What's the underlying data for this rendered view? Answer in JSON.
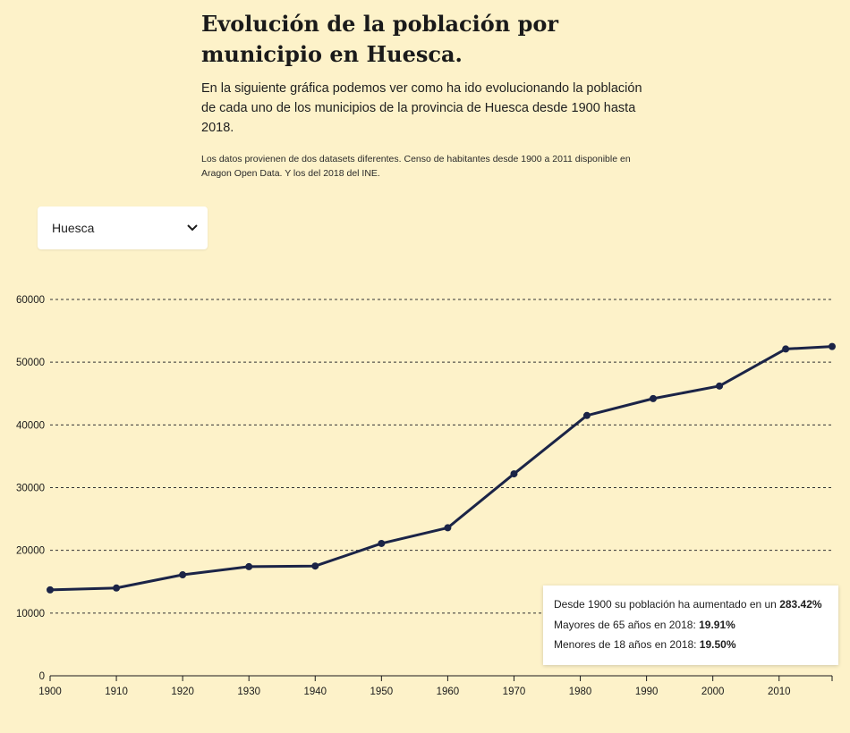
{
  "header": {
    "title": "Evolución de la población por municipio en Huesca.",
    "subtitle": "En la siguiente gráfica podemos ver como ha ido evolucionando la población de cada uno de los municipios de la provincia de Huesca desde 1900 hasta 2018.",
    "note": "Los datos provienen de dos datasets diferentes. Censo de habitantes desde 1900 a 2011 disponible en Aragon Open Data. Y los del 2018 del INE."
  },
  "selector": {
    "selected": "Huesca",
    "icon": "chevron-down-icon"
  },
  "colors": {
    "background": "#fdf2c9",
    "line": "#1b2447",
    "grid": "#333333"
  },
  "tooltip": {
    "line1_prefix": "Desde 1900 su población ha aumentado en un ",
    "line1_value": "283.42%",
    "line2_prefix": "Mayores de 65 años en 2018: ",
    "line2_value": "19.91%",
    "line3_prefix": "Menores de 18 años en 2018: ",
    "line3_value": "19.50%"
  },
  "chart_data": {
    "type": "line",
    "x": [
      1900,
      1910,
      1920,
      1930,
      1940,
      1950,
      1960,
      1970,
      1981,
      1991,
      2001,
      2011,
      2018
    ],
    "series": [
      {
        "values": [
          13700,
          14000,
          16100,
          17400,
          17500,
          21100,
          23600,
          32200,
          41500,
          44200,
          46200,
          52100,
          52500
        ]
      }
    ],
    "xticks": [
      1900,
      1910,
      1920,
      1930,
      1940,
      1950,
      1960,
      1970,
      1980,
      1990,
      2000,
      2010
    ],
    "yticks": [
      0,
      10000,
      20000,
      30000,
      40000,
      50000,
      60000
    ],
    "xlim": [
      1900,
      2018
    ],
    "ylim": [
      0,
      60000
    ],
    "grid": "horizontal-dashed",
    "xlabel": "",
    "ylabel": ""
  }
}
